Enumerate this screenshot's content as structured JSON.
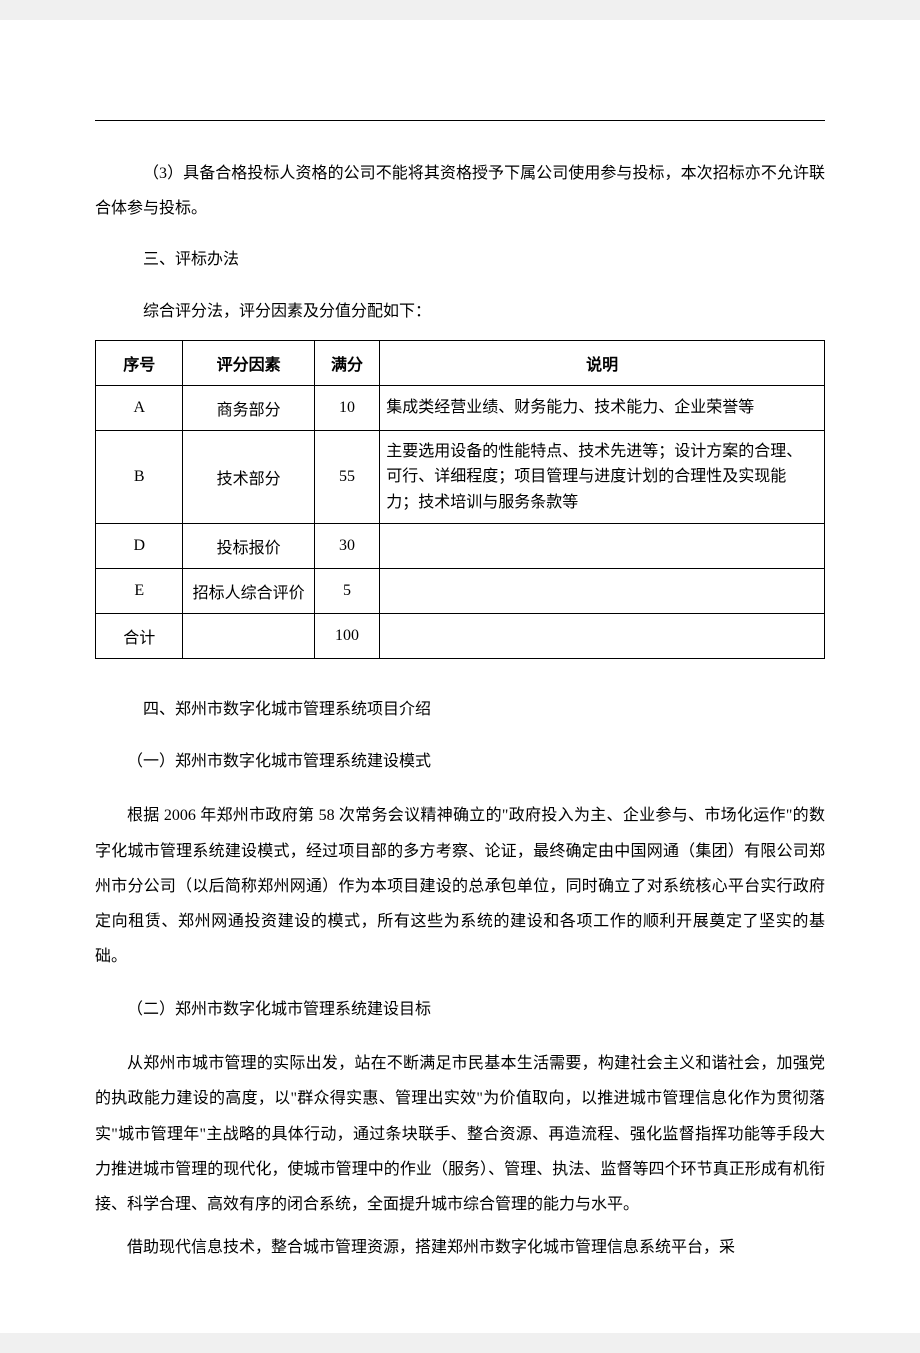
{
  "para_3": "（3）具备合格投标人资格的公司不能将其资格授予下属公司使用参与投标，本次招标亦不允许联合体参与投标。",
  "section_3_title": "三、评标办法",
  "section_3_intro": "综合评分法，评分因素及分值分配如下：",
  "table": {
    "headers": [
      "序号",
      "评分因素",
      "满分",
      "说明"
    ],
    "rows": [
      [
        "A",
        "商务部分",
        "10",
        "集成类经营业绩、财务能力、技术能力、企业荣誉等"
      ],
      [
        "B",
        "技术部分",
        "55",
        "主要选用设备的性能特点、技术先进等；设计方案的合理、可行、详细程度；项目管理与进度计划的合理性及实现能力；技术培训与服务条款等"
      ],
      [
        "D",
        "投标报价",
        "30",
        ""
      ],
      [
        "E",
        "招标人综合评价",
        "5",
        ""
      ],
      [
        "合计",
        "",
        "100",
        ""
      ]
    ]
  },
  "section_4_title": "四、郑州市数字化城市管理系统项目介绍",
  "sub_4_1_title": "（一）郑州市数字化城市管理系统建设模式",
  "sub_4_1_body": "根据 2006 年郑州市政府第 58 次常务会议精神确立的\"政府投入为主、企业参与、市场化运作\"的数字化城市管理系统建设模式，经过项目部的多方考察、论证，最终确定由中国网通（集团）有限公司郑州市分公司（以后简称郑州网通）作为本项目建设的总承包单位，同时确立了对系统核心平台实行政府定向租赁、郑州网通投资建设的模式，所有这些为系统的建设和各项工作的顺利开展奠定了坚实的基础。",
  "sub_4_2_title": "（二）郑州市数字化城市管理系统建设目标",
  "sub_4_2_body_1": "从郑州市城市管理的实际出发，站在不断满足市民基本生活需要，构建社会主义和谐社会，加强党的执政能力建设的高度，以\"群众得实惠、管理出实效\"为价值取向，以推进城市管理信息化作为贯彻落实\"城市管理年\"主战略的具体行动，通过条块联手、整合资源、再造流程、强化监督指挥功能等手段大力推进城市管理的现代化，使城市管理中的作业（服务）、管理、执法、监督等四个环节真正形成有机衔接、科学合理、高效有序的闭合系统，全面提升城市综合管理的能力与水平。",
  "sub_4_2_body_2": "借助现代信息技术，整合城市管理资源，搭建郑州市数字化城市管理信息系统平台，采"
}
